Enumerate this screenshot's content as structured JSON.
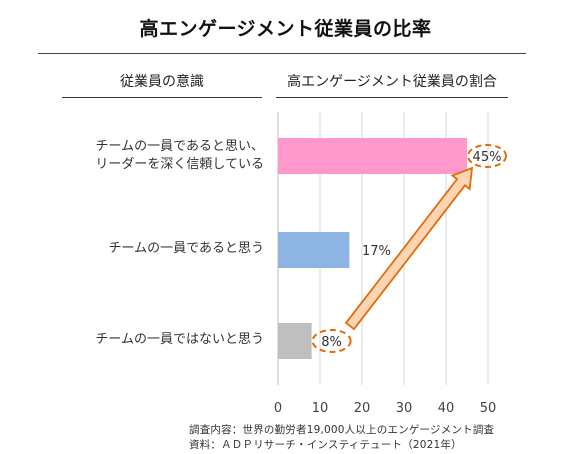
{
  "title": "高エンゲージメント従業員の比率",
  "column_headers": {
    "left": "従業員の意識",
    "right": "高エンゲージメント従業員の割合"
  },
  "chart_data": {
    "type": "bar",
    "orientation": "horizontal",
    "title": "高エンゲージメント従業員の比率",
    "categories": [
      [
        "チームの一員であると思い、",
        "リーダーを深く信頼している"
      ],
      [
        "チームの一員であると思う"
      ],
      [
        "チームの一員ではないと思う"
      ]
    ],
    "values": [
      45,
      17,
      8
    ],
    "value_labels": [
      "45%",
      "17%",
      "8%"
    ],
    "colors": [
      "#ff99cc",
      "#8eb4e3",
      "#bfbfbf"
    ],
    "xlim": [
      0,
      50
    ],
    "xticks": [
      0,
      10,
      20,
      30,
      40,
      50
    ],
    "grid": true,
    "annotation": {
      "type": "arrow",
      "from_category_index": 2,
      "to_category_index": 0,
      "highlight_color": "#e36c09",
      "fill_color": "#fcd5b5"
    }
  },
  "notes": [
    "調査内容：世界の勤労者19,000人以上のエンゲージメント調査",
    "資料：ＡＤＰリサーチ・インスティテュート（2021年）"
  ]
}
